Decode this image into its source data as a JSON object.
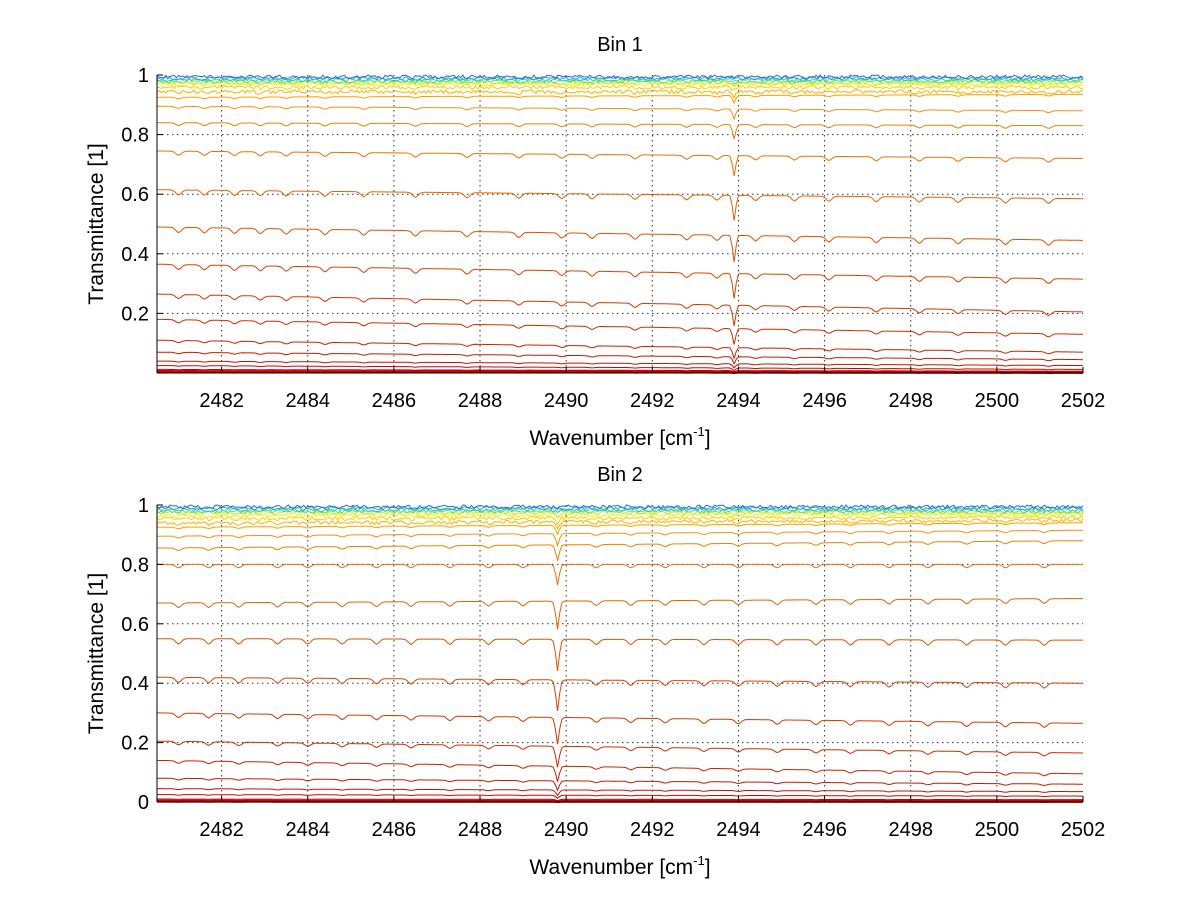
{
  "chart_data": [
    {
      "type": "line",
      "title": "Bin 1",
      "xlabel": "Wavenumber [cm",
      "xlabel_sup": "-1",
      "xlabel_close": "]",
      "ylabel": "Transmittance [1]",
      "xlim": [
        2480.5,
        2502
      ],
      "ylim": [
        0,
        1
      ],
      "xticks": [
        2482,
        2484,
        2486,
        2488,
        2490,
        2492,
        2494,
        2496,
        2498,
        2500,
        2502
      ],
      "xtick_labels": [
        "2482",
        "2484",
        "2486",
        "2488",
        "2490",
        "2492",
        "2494",
        "2496",
        "2498",
        "2500",
        "2502"
      ],
      "yticks": [
        0.2,
        0.4,
        0.6,
        0.8,
        1
      ],
      "ytick_labels": [
        "0.2",
        "0.4",
        "0.6",
        "0.8",
        "1"
      ],
      "grid": true,
      "series_levels_start": [
        1.0,
        0.995,
        0.99,
        0.985,
        0.98,
        0.975,
        0.965,
        0.95,
        0.925,
        0.895,
        0.84,
        0.745,
        0.615,
        0.49,
        0.365,
        0.265,
        0.18,
        0.11,
        0.07,
        0.04,
        0.025,
        0.012,
        0.005
      ],
      "series_levels_end": [
        1.0,
        0.995,
        0.99,
        0.985,
        0.98,
        0.975,
        0.965,
        0.95,
        0.935,
        0.88,
        0.83,
        0.72,
        0.585,
        0.445,
        0.315,
        0.205,
        0.13,
        0.07,
        0.045,
        0.025,
        0.012,
        0.006,
        0.002
      ],
      "series_colors": [
        "#1e6ee6",
        "#22aadd",
        "#33ccaa",
        "#66dd66",
        "#bbee33",
        "#ffee00",
        "#ffcc00",
        "#ffb300",
        "#ff9f00",
        "#f59210",
        "#ef8200",
        "#ea7300",
        "#e56400",
        "#e05400",
        "#d94400",
        "#d33a00",
        "#cc3000",
        "#c82500",
        "#c41c00",
        "#c01400",
        "#c00c00",
        "#c00500",
        "#cc0000"
      ],
      "absorption_lines": [
        2481.0,
        2481.6,
        2482.3,
        2482.9,
        2483.5,
        2484.4,
        2485.3,
        2486.5,
        2487.7,
        2488.9,
        2489.9,
        2490.6,
        2491.6,
        2492.8,
        2493.5,
        2494.4,
        2495.3,
        2496.1,
        2497.2,
        2498.2,
        2499.1,
        2500.2,
        2501.2
      ],
      "strong_line": 2493.9
    },
    {
      "type": "line",
      "title": "Bin 2",
      "xlabel": "Wavenumber [cm",
      "xlabel_sup": "-1",
      "xlabel_close": "]",
      "ylabel": "Transmittance [1]",
      "xlim": [
        2480.5,
        2502
      ],
      "ylim": [
        0,
        1
      ],
      "xticks": [
        2482,
        2484,
        2486,
        2488,
        2490,
        2492,
        2494,
        2496,
        2498,
        2500,
        2502
      ],
      "xtick_labels": [
        "2482",
        "2484",
        "2486",
        "2488",
        "2490",
        "2492",
        "2494",
        "2496",
        "2498",
        "2500",
        "2502"
      ],
      "yticks": [
        0,
        0.2,
        0.4,
        0.6,
        0.8,
        1
      ],
      "ytick_labels": [
        "0",
        "0.2",
        "0.4",
        "0.6",
        "0.8",
        "1"
      ],
      "grid": true,
      "series_levels_start": [
        1.0,
        0.995,
        0.99,
        0.985,
        0.98,
        0.97,
        0.96,
        0.945,
        0.925,
        0.895,
        0.855,
        0.8,
        0.67,
        0.55,
        0.42,
        0.3,
        0.205,
        0.14,
        0.08,
        0.045,
        0.025,
        0.01,
        0.003
      ],
      "series_levels_end": [
        1.0,
        0.995,
        0.99,
        0.985,
        0.98,
        0.975,
        0.965,
        0.955,
        0.94,
        0.915,
        0.88,
        0.8,
        0.685,
        0.545,
        0.4,
        0.265,
        0.165,
        0.095,
        0.06,
        0.035,
        0.02,
        0.008,
        0.002
      ],
      "series_colors": [
        "#1e6ee6",
        "#22aadd",
        "#33ccaa",
        "#66dd66",
        "#bbee33",
        "#ffee00",
        "#ffcc00",
        "#ffb300",
        "#ff9f00",
        "#f59210",
        "#ef8200",
        "#ea7300",
        "#e56400",
        "#e05400",
        "#d94400",
        "#d33a00",
        "#cc3000",
        "#c82500",
        "#c41c00",
        "#c01400",
        "#c00c00",
        "#c00500",
        "#cc0000"
      ],
      "absorption_lines": [
        2481.0,
        2481.7,
        2482.4,
        2483.3,
        2484.0,
        2484.8,
        2485.6,
        2486.4,
        2487.3,
        2488.2,
        2489.0,
        2489.8,
        2490.7,
        2491.5,
        2492.3,
        2493.2,
        2494.0,
        2494.9,
        2495.8,
        2496.6,
        2497.5,
        2498.4,
        2499.3,
        2500.2,
        2501.1
      ],
      "strong_line": 2489.8
    }
  ]
}
